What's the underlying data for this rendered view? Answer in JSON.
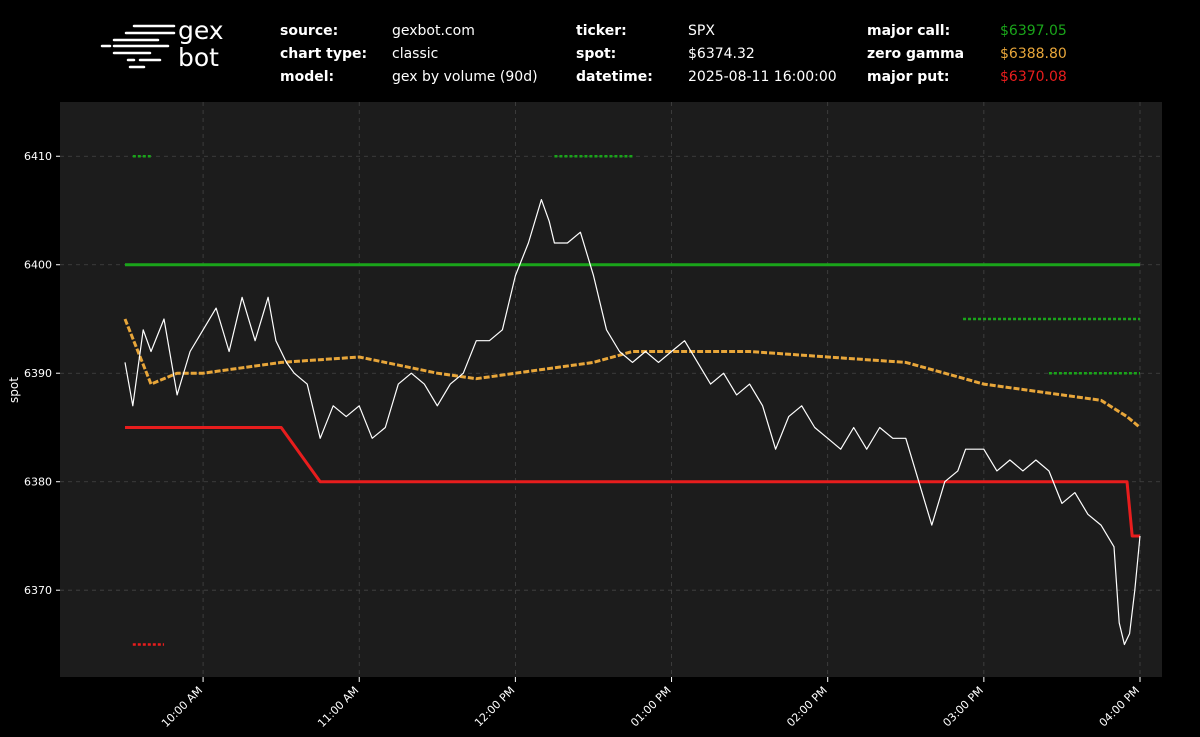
{
  "logo": {
    "line1": "gex",
    "line2": "bot"
  },
  "header": {
    "source_label": "source:",
    "source_value": "gexbot.com",
    "chart_type_label": "chart type:",
    "chart_type_value": "classic",
    "model_label": "model:",
    "model_value": "gex by volume (90d)",
    "ticker_label": "ticker:",
    "ticker_value": "SPX",
    "spot_label": "spot:",
    "spot_value": "$6374.32",
    "datetime_label": "datetime:",
    "datetime_value": "2025-08-11 16:00:00",
    "major_call_label": "major call:",
    "major_call_value": "$6397.05",
    "zero_gamma_label": "zero gamma",
    "zero_gamma_value": "$6388.80",
    "major_put_label": "major put:",
    "major_put_value": "$6370.08"
  },
  "colors": {
    "background": "#000000",
    "plot_bg": "#1c1c1c",
    "call": "#1aa51a",
    "zero_gamma": "#e8a63a",
    "put": "#e81d1d",
    "spot": "#ffffff",
    "text": "#ffffff"
  },
  "chart_data": {
    "type": "line",
    "ylabel": "spot",
    "xlabel": "",
    "xlim": [
      "09:30",
      "16:00"
    ],
    "ylim": [
      6362,
      6415
    ],
    "x_ticks": [
      "10:00 AM",
      "11:00 AM",
      "12:00 PM",
      "01:00 PM",
      "02:00 PM",
      "03:00 PM",
      "04:00 PM"
    ],
    "x_tick_times": [
      "10:00",
      "11:00",
      "12:00",
      "13:00",
      "14:00",
      "15:00",
      "16:00"
    ],
    "y_ticks": [
      6370,
      6380,
      6390,
      6400,
      6410
    ],
    "grid": true,
    "series": [
      {
        "name": "spot",
        "x": [
          "09:30",
          "09:33",
          "09:37",
          "09:40",
          "09:45",
          "09:50",
          "09:55",
          "10:00",
          "10:05",
          "10:10",
          "10:15",
          "10:20",
          "10:25",
          "10:28",
          "10:32",
          "10:35",
          "10:40",
          "10:45",
          "10:50",
          "10:55",
          "11:00",
          "11:05",
          "11:10",
          "11:15",
          "11:20",
          "11:25",
          "11:30",
          "11:35",
          "11:40",
          "11:45",
          "11:50",
          "11:55",
          "12:00",
          "12:05",
          "12:10",
          "12:13",
          "12:15",
          "12:20",
          "12:25",
          "12:30",
          "12:35",
          "12:40",
          "12:45",
          "12:50",
          "12:55",
          "13:00",
          "13:05",
          "13:10",
          "13:15",
          "13:20",
          "13:25",
          "13:30",
          "13:35",
          "13:40",
          "13:45",
          "13:50",
          "13:55",
          "14:00",
          "14:05",
          "14:10",
          "14:15",
          "14:20",
          "14:25",
          "14:30",
          "14:35",
          "14:40",
          "14:45",
          "14:50",
          "14:53",
          "14:55",
          "15:00",
          "15:05",
          "15:10",
          "15:15",
          "15:20",
          "15:25",
          "15:30",
          "15:35",
          "15:40",
          "15:45",
          "15:50",
          "15:52",
          "15:54",
          "15:56",
          "15:58",
          "16:00"
        ],
        "values": [
          6391,
          6387,
          6394,
          6392,
          6395,
          6388,
          6392,
          6394,
          6396,
          6392,
          6397,
          6393,
          6397,
          6393,
          6391,
          6390,
          6389,
          6384,
          6387,
          6386,
          6387,
          6384,
          6385,
          6389,
          6390,
          6389,
          6387,
          6389,
          6390,
          6393,
          6393,
          6394,
          6399,
          6402,
          6406,
          6404,
          6402,
          6402,
          6403,
          6399,
          6394,
          6392,
          6391,
          6392,
          6391,
          6392,
          6393,
          6391,
          6389,
          6390,
          6388,
          6389,
          6387,
          6383,
          6386,
          6387,
          6385,
          6384,
          6383,
          6385,
          6383,
          6385,
          6384,
          6384,
          6380,
          6376,
          6380,
          6381,
          6383,
          6383,
          6383,
          6381,
          6382,
          6381,
          6382,
          6381,
          6378,
          6379,
          6377,
          6376,
          6374,
          6367,
          6365,
          6366,
          6370,
          6375
        ]
      },
      {
        "name": "major call",
        "x": [
          "09:30",
          "11:00",
          "12:00",
          "13:00",
          "14:00",
          "15:00",
          "16:00"
        ],
        "values": [
          6400,
          6400,
          6400,
          6400,
          6400,
          6400,
          6400
        ]
      },
      {
        "name": "zero gamma",
        "x": [
          "09:30",
          "09:35",
          "09:40",
          "09:50",
          "10:00",
          "10:30",
          "11:00",
          "11:30",
          "11:45",
          "12:00",
          "12:15",
          "12:30",
          "12:45",
          "13:00",
          "13:30",
          "14:00",
          "14:30",
          "14:45",
          "15:00",
          "15:15",
          "15:30",
          "15:45",
          "15:55",
          "16:00"
        ],
        "values": [
          6395,
          6392,
          6389,
          6390,
          6390,
          6391,
          6391.5,
          6390,
          6389.5,
          6390,
          6390.5,
          6391,
          6392,
          6392,
          6392,
          6391.5,
          6391,
          6390,
          6389,
          6388.5,
          6388,
          6387.5,
          6386,
          6385
        ]
      },
      {
        "name": "major put",
        "x": [
          "09:30",
          "10:00",
          "10:30",
          "10:45",
          "11:00",
          "12:00",
          "13:00",
          "14:00",
          "15:00",
          "15:55",
          "15:57",
          "16:00"
        ],
        "values": [
          6385,
          6385,
          6385,
          6380,
          6380,
          6380,
          6380,
          6380,
          6380,
          6380,
          6375,
          6375
        ]
      }
    ],
    "annotations": [
      {
        "series": "major call",
        "x0": "09:33",
        "x1": "09:40",
        "y": 6410
      },
      {
        "series": "major call",
        "x0": "12:15",
        "x1": "12:45",
        "y": 6410
      },
      {
        "series": "major call",
        "x0": "14:52",
        "x1": "16:00",
        "y": 6395
      },
      {
        "series": "major call",
        "x0": "15:25",
        "x1": "16:00",
        "y": 6390
      },
      {
        "series": "major put",
        "x0": "09:33",
        "x1": "09:45",
        "y": 6365
      }
    ]
  }
}
